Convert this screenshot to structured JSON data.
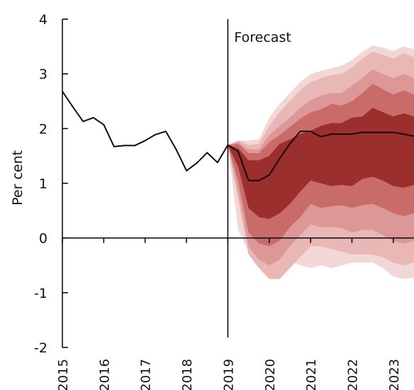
{
  "chart_data": {
    "type": "area",
    "subtype": "fan-chart",
    "title": "",
    "xlabel": "",
    "ylabel": "Per cent",
    "xlim": [
      2015,
      2023.5
    ],
    "ylim": [
      -2,
      4
    ],
    "yticks": [
      -2,
      -1,
      0,
      1,
      2,
      3,
      4
    ],
    "ytick_labels": [
      "-2",
      "-1",
      "0",
      "1",
      "2",
      "3",
      "4"
    ],
    "xticks": [
      2015,
      2016,
      2017,
      2018,
      2019,
      2020,
      2021,
      2022,
      2023
    ],
    "xtick_labels": [
      "2015",
      "2016",
      "2017",
      "2018",
      "2019",
      "2020",
      "2021",
      "2022",
      "2023"
    ],
    "grid": false,
    "legend": "none",
    "forecast_start": 2019,
    "annotations": [
      {
        "text": "Forecast",
        "x": 2019,
        "y": 3.7
      }
    ],
    "colors": {
      "line": "#1a0a0a",
      "bands": [
        "#f2d7d6",
        "#e9b8b6",
        "#dc9896",
        "#c86b69",
        "#9b2f2e"
      ]
    },
    "x": [
      2015,
      2015.25,
      2015.5,
      2015.75,
      2016,
      2016.25,
      2016.5,
      2016.75,
      2017,
      2017.25,
      2017.5,
      2017.75,
      2018,
      2018.25,
      2018.5,
      2018.75,
      2019,
      2019.25,
      2019.5,
      2019.75,
      2020,
      2020.25,
      2020.5,
      2020.75,
      2021,
      2021.25,
      2021.5,
      2021.75,
      2022,
      2022.25,
      2022.5,
      2022.75,
      2023,
      2023.25,
      2023.5
    ],
    "series": [
      {
        "name": "",
        "type": "line",
        "values": [
          2.68,
          2.4,
          2.13,
          2.2,
          2.07,
          1.67,
          1.69,
          1.69,
          1.78,
          1.89,
          1.95,
          1.62,
          1.23,
          1.37,
          1.56,
          1.38,
          1.7,
          1.58,
          1.05,
          1.05,
          1.15,
          1.45,
          1.72,
          1.95,
          1.95,
          1.85,
          1.9,
          1.9,
          1.9,
          1.93,
          1.93,
          1.93,
          1.93,
          1.9,
          1.86
        ]
      }
    ],
    "fan": {
      "x": [
        2019,
        2019.25,
        2019.5,
        2019.75,
        2020,
        2020.25,
        2020.5,
        2020.75,
        2021,
        2021.25,
        2021.5,
        2021.75,
        2022,
        2022.25,
        2022.5,
        2022.75,
        2023,
        2023.25,
        2023.5
      ],
      "bands": [
        {
          "lower": [
            1.7,
            1.3,
            0.55,
            0.38,
            0.35,
            0.45,
            0.62,
            0.85,
            1.05,
            1.0,
            0.95,
            0.97,
            0.95,
            1.08,
            1.12,
            1.05,
            0.95,
            0.92,
            0.97
          ],
          "upper": [
            1.7,
            1.64,
            1.42,
            1.42,
            1.5,
            1.72,
            1.8,
            1.9,
            1.96,
            2.05,
            2.1,
            2.1,
            2.2,
            2.22,
            2.38,
            2.3,
            2.22,
            2.28,
            2.22
          ]
        },
        {
          "lower": [
            1.7,
            1.05,
            0.1,
            -0.1,
            -0.15,
            -0.05,
            0.2,
            0.38,
            0.62,
            0.55,
            0.58,
            0.6,
            0.55,
            0.6,
            0.62,
            0.55,
            0.45,
            0.4,
            0.45
          ],
          "upper": [
            1.7,
            1.72,
            1.55,
            1.55,
            1.75,
            1.88,
            2.03,
            2.18,
            2.3,
            2.35,
            2.45,
            2.42,
            2.5,
            2.65,
            2.82,
            2.72,
            2.62,
            2.7,
            2.62
          ]
        },
        {
          "lower": [
            1.7,
            0.85,
            -0.15,
            -0.4,
            -0.5,
            -0.4,
            -0.15,
            0.05,
            0.25,
            0.2,
            0.2,
            0.18,
            0.1,
            0.15,
            0.15,
            0.05,
            -0.05,
            -0.1,
            -0.05
          ],
          "upper": [
            1.7,
            1.75,
            1.62,
            1.62,
            1.88,
            2.05,
            2.2,
            2.38,
            2.52,
            2.6,
            2.65,
            2.65,
            2.78,
            2.92,
            3.08,
            3.0,
            2.92,
            3.0,
            2.92
          ]
        },
        {
          "lower": [
            1.7,
            0.7,
            -0.3,
            -0.55,
            -0.75,
            -0.75,
            -0.55,
            -0.35,
            -0.15,
            -0.15,
            -0.2,
            -0.25,
            -0.3,
            -0.3,
            -0.3,
            -0.35,
            -0.45,
            -0.5,
            -0.45
          ],
          "upper": [
            1.7,
            1.78,
            1.7,
            1.72,
            2.05,
            2.3,
            2.5,
            2.7,
            2.85,
            2.92,
            2.98,
            3.0,
            3.12,
            3.28,
            3.4,
            3.35,
            3.28,
            3.38,
            3.3
          ]
        },
        {
          "lower": [
            1.7,
            0.15,
            -0.25,
            -0.3,
            -0.32,
            -0.38,
            -0.42,
            -0.5,
            -0.55,
            -0.5,
            -0.55,
            -0.5,
            -0.45,
            -0.45,
            -0.45,
            -0.55,
            -0.7,
            -0.75,
            -0.72
          ],
          "upper": [
            1.7,
            1.78,
            1.78,
            1.8,
            2.2,
            2.45,
            2.65,
            2.85,
            3.0,
            3.05,
            3.1,
            3.15,
            3.25,
            3.4,
            3.52,
            3.48,
            3.42,
            3.5,
            3.45
          ]
        }
      ]
    }
  }
}
